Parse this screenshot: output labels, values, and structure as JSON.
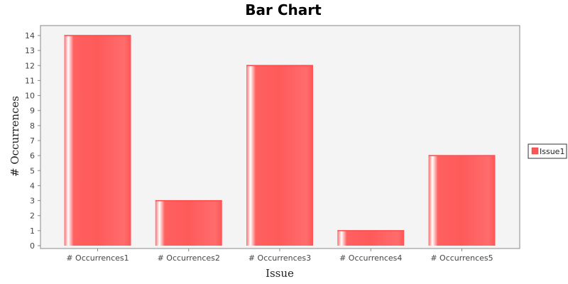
{
  "chart_data": {
    "type": "bar",
    "title": "Bar Chart",
    "xlabel": "Issue",
    "ylabel": "# Occurrences",
    "categories": [
      "# Occurrences1",
      "# Occurrences2",
      "# Occurrences3",
      "# Occurrences4",
      "# Occurrences5"
    ],
    "series": [
      {
        "name": "Issue1",
        "values": [
          14,
          3,
          12,
          1,
          6
        ]
      }
    ],
    "ylim": [
      0,
      14
    ],
    "yticks": [
      0,
      1,
      2,
      3,
      4,
      5,
      6,
      7,
      8,
      9,
      10,
      11,
      12,
      13,
      14
    ],
    "grid": false,
    "legend_position": "right",
    "colors": {
      "bar": "#ff5555",
      "bar_highlight": "#ffffff",
      "plot_background": "#f4f4f4",
      "plot_border": "#888888",
      "axis": "#888888"
    }
  }
}
